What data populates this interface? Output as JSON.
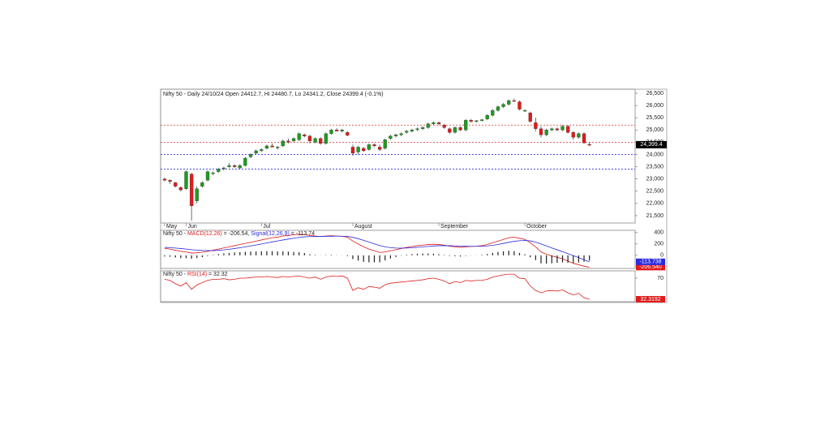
{
  "chart_data": [
    {
      "type": "candlestick",
      "title": "Nifty 50 - Daily 24/10/24 Open 24412.7, Hi 24480.7, Lo 24341.2, Close 24399.4 (-0.1%)",
      "up_color": "#1e9c1e",
      "down_color": "#e01b1b",
      "xlim": [
        -0.75,
        87.5
      ],
      "xticks": [
        {
          "value": 0,
          "label": "May"
        },
        {
          "value": 4,
          "label": "Jun"
        },
        {
          "value": 18,
          "label": "Jul"
        },
        {
          "value": 35,
          "label": "August"
        },
        {
          "value": 51,
          "label": "September"
        },
        {
          "value": 67,
          "label": "October"
        }
      ],
      "ylim": [
        21200,
        26665
      ],
      "yticks": [
        {
          "value": 21500,
          "label": "21,500"
        },
        {
          "value": 22000,
          "label": "22,000"
        },
        {
          "value": 22500,
          "label": "22,500"
        },
        {
          "value": 23000,
          "label": "23,000"
        },
        {
          "value": 23500,
          "label": "23,500"
        },
        {
          "value": 24000,
          "label": "24,000"
        },
        {
          "value": 24500,
          "label": "24,500"
        },
        {
          "value": 25000,
          "label": "25,000"
        },
        {
          "value": 25500,
          "label": "25,500"
        },
        {
          "value": 26000,
          "label": "26,000"
        },
        {
          "value": 26500,
          "label": "26,500"
        }
      ],
      "levels": [
        {
          "value": 25200,
          "color": "#e03030"
        },
        {
          "value": 24500,
          "color": "#e03030"
        },
        {
          "value": 24000,
          "color": "#3030e0"
        },
        {
          "value": 23400,
          "color": "#3030e0"
        }
      ],
      "last_label": "24,399.4",
      "open": [
        23000,
        22950,
        22850,
        22650,
        22600,
        23200,
        22100,
        22700,
        22950,
        23250,
        23300,
        23450,
        23500,
        23550,
        23450,
        23550,
        23900,
        24050,
        24150,
        24250,
        24350,
        24300,
        24350,
        24550,
        24550,
        24600,
        24800,
        24750,
        24500,
        24650,
        24450,
        24850,
        25000,
        24950,
        24900,
        24300,
        24100,
        24250,
        24200,
        24400,
        24300,
        24250,
        24650,
        24750,
        24800,
        24900,
        24950,
        25050,
        25050,
        25100,
        25250,
        25300,
        25200,
        25050,
        24900,
        25100,
        25000,
        25400,
        25350,
        25380,
        25450,
        25600,
        25800,
        25950,
        26050,
        26200,
        26150,
        25800,
        25700,
        25300,
        25050,
        24800,
        25000,
        25050,
        25000,
        25150,
        24900,
        24700,
        24850,
        24412.7
      ],
      "high": [
        23050,
        22980,
        22880,
        22700,
        23350,
        23250,
        22700,
        22900,
        23350,
        23300,
        23450,
        23500,
        23650,
        23600,
        23600,
        23900,
        24050,
        24200,
        24250,
        24400,
        24450,
        24350,
        24600,
        24650,
        24700,
        24900,
        24850,
        24800,
        24700,
        24700,
        24900,
        25050,
        25080,
        25050,
        24950,
        24400,
        24350,
        24300,
        24450,
        24450,
        24400,
        24650,
        24800,
        24850,
        24900,
        25000,
        25050,
        25100,
        25150,
        25300,
        25350,
        25350,
        25250,
        25100,
        25150,
        25150,
        25450,
        25450,
        25400,
        25450,
        25650,
        25850,
        26000,
        26100,
        26250,
        26280,
        26200,
        25850,
        25750,
        25500,
        25150,
        25050,
        25100,
        25100,
        25200,
        25200,
        24950,
        24900,
        24900,
        24480.7
      ],
      "low": [
        22900,
        22800,
        22650,
        22500,
        22550,
        21300,
        22000,
        22650,
        22900,
        23150,
        23250,
        23350,
        23450,
        23450,
        23400,
        23500,
        23850,
        24000,
        24100,
        24200,
        24300,
        24200,
        24300,
        24450,
        24500,
        24550,
        24700,
        24450,
        24450,
        24400,
        24400,
        24800,
        24950,
        24900,
        24750,
        23950,
        24000,
        24100,
        24150,
        24300,
        24150,
        24200,
        24600,
        24700,
        24750,
        24850,
        24900,
        24950,
        25000,
        25050,
        25200,
        25200,
        25050,
        24850,
        24850,
        24950,
        24950,
        25300,
        25300,
        25350,
        25400,
        25550,
        25750,
        25900,
        26000,
        26150,
        25800,
        25750,
        25300,
        24950,
        24700,
        24750,
        24950,
        24950,
        24950,
        24850,
        24600,
        24650,
        24450,
        24341.2
      ],
      "close": [
        22950,
        22900,
        22700,
        22550,
        23300,
        21900,
        22600,
        22850,
        23300,
        23250,
        23400,
        23450,
        23550,
        23500,
        23550,
        23850,
        24000,
        24150,
        24200,
        24350,
        24300,
        24300,
        24550,
        24500,
        24650,
        24850,
        24750,
        24550,
        24650,
        24450,
        24850,
        25000,
        24950,
        25000,
        24780,
        24050,
        24300,
        24150,
        24400,
        24350,
        24200,
        24600,
        24750,
        24800,
        24850,
        24950,
        25000,
        25050,
        25100,
        25250,
        25300,
        25250,
        25100,
        24900,
        25100,
        25000,
        25400,
        25350,
        25380,
        25420,
        25600,
        25800,
        25950,
        26050,
        26200,
        26180,
        25850,
        25800,
        25350,
        25050,
        24800,
        25000,
        25050,
        25000,
        25150,
        24900,
        24700,
        24850,
        24470,
        24399.4
      ]
    },
    {
      "type": "line",
      "label_prefix": "Nifty 50 - ",
      "xlim": [
        -0.75,
        87.5
      ],
      "ylim": [
        -230,
        440
      ],
      "yticks": [
        0,
        200,
        400
      ],
      "series": [
        {
          "name": "MACD(12,26)",
          "suffix": " = -206.54, ",
          "color": "#e01b1b",
          "last_label": "-206.540",
          "values": [
            120,
            110,
            90,
            70,
            60,
            40,
            45,
            55,
            70,
            90,
            110,
            130,
            150,
            170,
            190,
            210,
            230,
            250,
            270,
            290,
            310,
            320,
            340,
            350,
            360,
            370,
            365,
            350,
            340,
            330,
            340,
            345,
            340,
            335,
            320,
            250,
            200,
            150,
            110,
            80,
            50,
            60,
            80,
            100,
            120,
            140,
            155,
            170,
            180,
            190,
            195,
            190,
            180,
            160,
            150,
            140,
            150,
            155,
            160,
            170,
            190,
            220,
            250,
            280,
            310,
            320,
            300,
            280,
            220,
            150,
            60,
            20,
            -10,
            -35,
            -60,
            -100,
            -140,
            -165,
            -190,
            -206.54
          ]
        },
        {
          "name": "Signal(12,26,9)",
          "suffix": " = -113.74",
          "color": "#2a2ae0",
          "last_label": "-113.738",
          "values": [
            140,
            135,
            128,
            120,
            110,
            100,
            92,
            86,
            83,
            82,
            88,
            96,
            107,
            120,
            134,
            149,
            165,
            182,
            199,
            217,
            236,
            253,
            270,
            286,
            301,
            315,
            325,
            330,
            332,
            332,
            334,
            336,
            337,
            337,
            333,
            316,
            293,
            264,
            233,
            202,
            172,
            149,
            135,
            128,
            126,
            129,
            134,
            141,
            149,
            157,
            165,
            170,
            172,
            170,
            166,
            161,
            159,
            158,
            158,
            160,
            166,
            176,
            191,
            209,
            229,
            247,
            257,
            262,
            254,
            233,
            200,
            165,
            130,
            97,
            65,
            30,
            -5,
            -40,
            -78,
            -113.738
          ]
        },
        {
          "mark": "bar",
          "color": "#222222",
          "values": [
            -20,
            -25,
            -38,
            -50,
            -50,
            -60,
            -47,
            -31,
            -13,
            8,
            22,
            34,
            43,
            50,
            56,
            61,
            65,
            68,
            71,
            73,
            74,
            67,
            70,
            64,
            59,
            55,
            40,
            20,
            8,
            -2,
            6,
            9,
            3,
            -2,
            -13,
            -66,
            -93,
            -114,
            -123,
            -122,
            -122,
            -89,
            -55,
            -28,
            -6,
            11,
            21,
            29,
            31,
            33,
            30,
            20,
            8,
            -10,
            -16,
            -21,
            -9,
            -3,
            2,
            10,
            24,
            44,
            59,
            71,
            81,
            73,
            43,
            18,
            -34,
            -83,
            -140,
            -145,
            -140,
            -132,
            -125,
            -130,
            -135,
            -125,
            -112,
            -92.8
          ]
        }
      ]
    },
    {
      "type": "line",
      "label_prefix": "Nifty 50 - ",
      "xlim": [
        -0.75,
        87.5
      ],
      "ylim": [
        28,
        83
      ],
      "yticks": [
        70
      ],
      "series": [
        {
          "name": "RSI(14)",
          "suffix": " = 32.32",
          "color": "#e01b1b",
          "last_label": "32.3192",
          "values": [
            68,
            66,
            60,
            56,
            62,
            50,
            58,
            62,
            66,
            68,
            68,
            69,
            67,
            68,
            70,
            70,
            71,
            72,
            72,
            73,
            72,
            71,
            73,
            72,
            73,
            74,
            72,
            70,
            72,
            68,
            72,
            74,
            73,
            74,
            70,
            48,
            53,
            50,
            55,
            54,
            52,
            58,
            61,
            62,
            63,
            64,
            65,
            66,
            67,
            69,
            70,
            68,
            65,
            60,
            64,
            62,
            66,
            65,
            66,
            66,
            68,
            72,
            74,
            76,
            77,
            77,
            70,
            69,
            56,
            48,
            44,
            47,
            48,
            47,
            49,
            44,
            40,
            43,
            35,
            32.3192
          ]
        }
      ]
    }
  ]
}
